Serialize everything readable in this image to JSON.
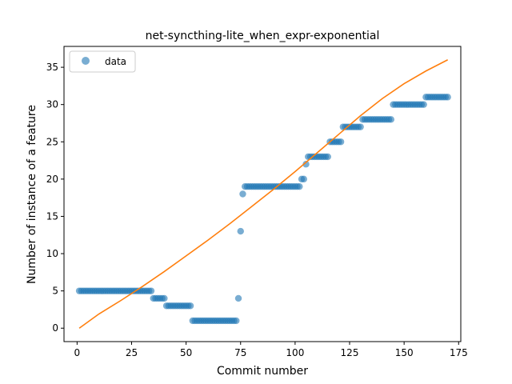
{
  "chart_data": {
    "type": "scatter",
    "title": "net-syncthing-lite_when_expr-exponential",
    "xlabel": "Commit number",
    "ylabel": "Number of instance of a feature",
    "xlim": [
      -6,
      176
    ],
    "ylim": [
      -1.8,
      37.8
    ],
    "xticks": [
      0,
      25,
      50,
      75,
      100,
      125,
      150,
      175
    ],
    "yticks": [
      0,
      5,
      10,
      15,
      20,
      25,
      30,
      35
    ],
    "grid": false,
    "legend_position": "top-left",
    "colors": {
      "data": "#1f77b4",
      "fit": "#ff7f0e"
    },
    "series": [
      {
        "name": "data",
        "kind": "points",
        "points": [
          [
            1,
            5
          ],
          [
            2,
            5
          ],
          [
            3,
            5
          ],
          [
            4,
            5
          ],
          [
            5,
            5
          ],
          [
            6,
            5
          ],
          [
            7,
            5
          ],
          [
            8,
            5
          ],
          [
            9,
            5
          ],
          [
            10,
            5
          ],
          [
            11,
            5
          ],
          [
            12,
            5
          ],
          [
            13,
            5
          ],
          [
            14,
            5
          ],
          [
            15,
            5
          ],
          [
            16,
            5
          ],
          [
            17,
            5
          ],
          [
            18,
            5
          ],
          [
            19,
            5
          ],
          [
            20,
            5
          ],
          [
            21,
            5
          ],
          [
            22,
            5
          ],
          [
            23,
            5
          ],
          [
            24,
            5
          ],
          [
            25,
            5
          ],
          [
            26,
            5
          ],
          [
            27,
            5
          ],
          [
            28,
            5
          ],
          [
            29,
            5
          ],
          [
            30,
            5
          ],
          [
            31,
            5
          ],
          [
            32,
            5
          ],
          [
            33,
            5
          ],
          [
            34,
            5
          ],
          [
            35,
            4
          ],
          [
            36,
            4
          ],
          [
            37,
            4
          ],
          [
            38,
            4
          ],
          [
            39,
            4
          ],
          [
            40,
            4
          ],
          [
            41,
            3
          ],
          [
            42,
            3
          ],
          [
            43,
            3
          ],
          [
            44,
            3
          ],
          [
            45,
            3
          ],
          [
            46,
            3
          ],
          [
            47,
            3
          ],
          [
            48,
            3
          ],
          [
            49,
            3
          ],
          [
            50,
            3
          ],
          [
            51,
            3
          ],
          [
            52,
            3
          ],
          [
            53,
            1
          ],
          [
            54,
            1
          ],
          [
            55,
            1
          ],
          [
            56,
            1
          ],
          [
            57,
            1
          ],
          [
            58,
            1
          ],
          [
            59,
            1
          ],
          [
            60,
            1
          ],
          [
            61,
            1
          ],
          [
            62,
            1
          ],
          [
            63,
            1
          ],
          [
            64,
            1
          ],
          [
            65,
            1
          ],
          [
            66,
            1
          ],
          [
            67,
            1
          ],
          [
            68,
            1
          ],
          [
            69,
            1
          ],
          [
            70,
            1
          ],
          [
            71,
            1
          ],
          [
            72,
            1
          ],
          [
            73,
            1
          ],
          [
            74,
            4
          ],
          [
            75,
            13
          ],
          [
            76,
            18
          ],
          [
            77,
            19
          ],
          [
            78,
            19
          ],
          [
            79,
            19
          ],
          [
            80,
            19
          ],
          [
            81,
            19
          ],
          [
            82,
            19
          ],
          [
            83,
            19
          ],
          [
            84,
            19
          ],
          [
            85,
            19
          ],
          [
            86,
            19
          ],
          [
            87,
            19
          ],
          [
            88,
            19
          ],
          [
            89,
            19
          ],
          [
            90,
            19
          ],
          [
            91,
            19
          ],
          [
            92,
            19
          ],
          [
            93,
            19
          ],
          [
            94,
            19
          ],
          [
            95,
            19
          ],
          [
            96,
            19
          ],
          [
            97,
            19
          ],
          [
            98,
            19
          ],
          [
            99,
            19
          ],
          [
            100,
            19
          ],
          [
            101,
            19
          ],
          [
            102,
            19
          ],
          [
            103,
            20
          ],
          [
            104,
            20
          ],
          [
            105,
            22
          ],
          [
            106,
            23
          ],
          [
            107,
            23
          ],
          [
            108,
            23
          ],
          [
            109,
            23
          ],
          [
            110,
            23
          ],
          [
            111,
            23
          ],
          [
            112,
            23
          ],
          [
            113,
            23
          ],
          [
            114,
            23
          ],
          [
            115,
            23
          ],
          [
            116,
            25
          ],
          [
            117,
            25
          ],
          [
            118,
            25
          ],
          [
            119,
            25
          ],
          [
            120,
            25
          ],
          [
            121,
            25
          ],
          [
            122,
            27
          ],
          [
            123,
            27
          ],
          [
            124,
            27
          ],
          [
            125,
            27
          ],
          [
            126,
            27
          ],
          [
            127,
            27
          ],
          [
            128,
            27
          ],
          [
            129,
            27
          ],
          [
            130,
            27
          ],
          [
            131,
            28
          ],
          [
            132,
            28
          ],
          [
            133,
            28
          ],
          [
            134,
            28
          ],
          [
            135,
            28
          ],
          [
            136,
            28
          ],
          [
            137,
            28
          ],
          [
            138,
            28
          ],
          [
            139,
            28
          ],
          [
            140,
            28
          ],
          [
            141,
            28
          ],
          [
            142,
            28
          ],
          [
            143,
            28
          ],
          [
            144,
            28
          ],
          [
            145,
            30
          ],
          [
            146,
            30
          ],
          [
            147,
            30
          ],
          [
            148,
            30
          ],
          [
            149,
            30
          ],
          [
            150,
            30
          ],
          [
            151,
            30
          ],
          [
            152,
            30
          ],
          [
            153,
            30
          ],
          [
            154,
            30
          ],
          [
            155,
            30
          ],
          [
            156,
            30
          ],
          [
            157,
            30
          ],
          [
            158,
            30
          ],
          [
            159,
            30
          ],
          [
            160,
            31
          ],
          [
            161,
            31
          ],
          [
            162,
            31
          ],
          [
            163,
            31
          ],
          [
            164,
            31
          ],
          [
            165,
            31
          ],
          [
            166,
            31
          ],
          [
            167,
            31
          ],
          [
            168,
            31
          ],
          [
            169,
            31
          ],
          [
            170,
            31
          ]
        ]
      },
      {
        "name": "",
        "kind": "line",
        "points": [
          [
            1,
            0.0
          ],
          [
            10,
            1.9
          ],
          [
            20,
            3.7
          ],
          [
            30,
            5.6
          ],
          [
            40,
            7.6
          ],
          [
            50,
            9.7
          ],
          [
            60,
            11.8
          ],
          [
            70,
            14.0
          ],
          [
            80,
            16.3
          ],
          [
            90,
            18.6
          ],
          [
            100,
            21.0
          ],
          [
            110,
            23.5
          ],
          [
            120,
            26.0
          ],
          [
            130,
            28.5
          ],
          [
            140,
            30.8
          ],
          [
            150,
            32.8
          ],
          [
            160,
            34.5
          ],
          [
            170,
            36.0
          ]
        ]
      }
    ]
  }
}
